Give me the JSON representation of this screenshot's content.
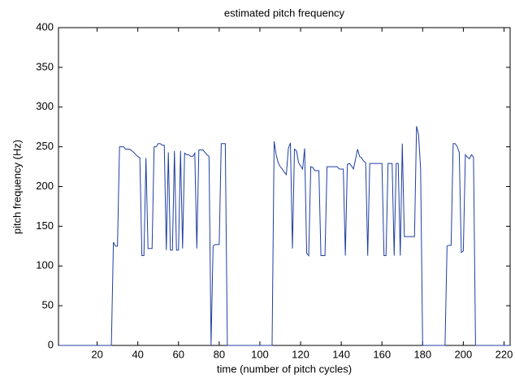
{
  "chart_data": {
    "type": "line",
    "title": "estimated pitch frequency",
    "x_label": "time (number of pitch cycles)",
    "y_label": "pitch frequency (Hz)",
    "xlim": [
      1,
      223
    ],
    "ylim": [
      0,
      400
    ],
    "xticks": [
      20,
      40,
      60,
      80,
      100,
      120,
      140,
      160,
      180,
      200,
      220
    ],
    "yticks": [
      0,
      50,
      100,
      150,
      200,
      250,
      300,
      350,
      400
    ],
    "grid": false,
    "x": [
      1,
      2,
      3,
      4,
      5,
      6,
      7,
      8,
      9,
      10,
      11,
      12,
      13,
      14,
      15,
      16,
      17,
      18,
      19,
      20,
      21,
      22,
      23,
      24,
      25,
      26,
      27,
      28,
      29,
      30,
      31,
      32,
      33,
      34,
      35,
      36,
      37,
      38,
      39,
      40,
      41,
      42,
      43,
      44,
      45,
      46,
      47,
      48,
      49,
      50,
      51,
      52,
      53,
      54,
      55,
      56,
      57,
      58,
      59,
      60,
      61,
      62,
      63,
      64,
      65,
      66,
      67,
      68,
      69,
      70,
      71,
      72,
      73,
      74,
      75,
      76,
      77,
      78,
      79,
      80,
      81,
      82,
      83,
      84,
      85,
      86,
      87,
      88,
      89,
      90,
      91,
      92,
      93,
      94,
      95,
      96,
      97,
      98,
      99,
      100,
      101,
      102,
      103,
      104,
      105,
      106,
      107,
      108,
      109,
      110,
      111,
      112,
      113,
      114,
      115,
      116,
      117,
      118,
      119,
      120,
      121,
      122,
      123,
      124,
      125,
      126,
      127,
      128,
      129,
      130,
      131,
      132,
      133,
      134,
      135,
      136,
      137,
      138,
      139,
      140,
      141,
      142,
      143,
      144,
      145,
      146,
      147,
      148,
      149,
      150,
      151,
      152,
      153,
      154,
      155,
      156,
      157,
      158,
      159,
      160,
      161,
      162,
      163,
      164,
      165,
      166,
      167,
      168,
      169,
      170,
      171,
      172,
      173,
      174,
      175,
      176,
      177,
      178,
      179,
      180,
      181,
      182,
      183,
      184,
      185,
      186,
      187,
      188,
      189,
      190,
      191,
      192,
      193,
      194,
      195,
      196,
      197,
      198,
      199,
      200,
      201,
      202,
      203,
      204,
      205,
      206,
      207,
      208,
      209,
      210,
      211,
      212,
      213,
      214,
      215,
      216,
      217,
      218,
      219,
      220,
      221,
      222,
      223
    ],
    "series": [
      {
        "color": "#1f3fa0",
        "values": [
          0,
          0,
          0,
          0,
          0,
          0,
          0,
          0,
          0,
          0,
          0,
          0,
          0,
          0,
          0,
          0,
          0,
          0,
          0,
          0,
          0,
          0,
          0,
          0,
          0,
          0,
          0,
          130,
          125,
          125,
          250,
          250,
          250,
          247,
          247,
          247,
          245,
          243,
          240,
          238,
          236,
          113,
          113,
          236,
          122,
          122,
          122,
          250,
          250,
          254,
          254,
          252,
          252,
          120,
          243,
          120,
          120,
          245,
          120,
          120,
          245,
          122,
          242,
          240,
          240,
          238,
          238,
          242,
          122,
          246,
          246,
          246,
          243,
          240,
          238,
          0,
          125,
          127,
          127,
          127,
          254,
          254,
          254,
          0,
          0,
          0,
          0,
          0,
          0,
          0,
          0,
          0,
          0,
          0,
          0,
          0,
          0,
          0,
          0,
          0,
          0,
          0,
          0,
          0,
          0,
          0,
          257,
          240,
          230,
          225,
          222,
          218,
          215,
          248,
          255,
          122,
          247,
          245,
          230,
          226,
          222,
          248,
          116,
          113,
          225,
          224,
          220,
          220,
          220,
          113,
          113,
          113,
          225,
          225,
          225,
          225,
          225,
          225,
          222,
          222,
          222,
          113,
          228,
          229,
          226,
          222,
          234,
          247,
          238,
          236,
          232,
          230,
          113,
          229,
          229,
          229,
          229,
          229,
          229,
          229,
          113,
          113,
          229,
          229,
          229,
          113,
          229,
          229,
          113,
          254,
          137,
          137,
          137,
          137,
          137,
          137,
          276,
          265,
          222,
          0,
          0,
          0,
          0,
          0,
          0,
          0,
          0,
          0,
          0,
          0,
          0,
          125,
          126,
          126,
          254,
          254,
          250,
          243,
          117,
          119,
          240,
          237,
          235,
          240,
          237,
          0,
          0,
          0,
          0,
          0,
          0,
          0,
          0,
          0,
          0,
          0,
          0,
          0,
          0,
          0,
          0,
          0,
          0
        ]
      }
    ]
  }
}
